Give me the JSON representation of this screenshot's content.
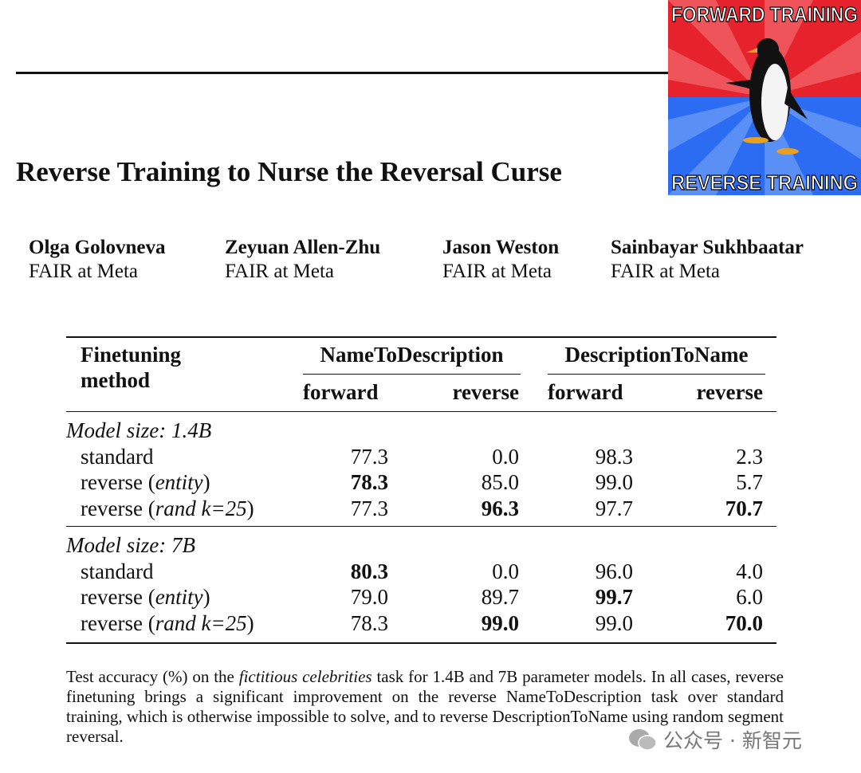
{
  "meme": {
    "top": "FORWARD TRAINING",
    "bottom": "REVERSE TRAINING"
  },
  "title": "Reverse Training to Nurse the Reversal Curse",
  "authors": [
    {
      "name": "Olga Golovneva",
      "affiliation": "FAIR at Meta"
    },
    {
      "name": "Zeyuan Allen-Zhu",
      "affiliation": "FAIR at Meta"
    },
    {
      "name": "Jason Weston",
      "affiliation": "FAIR at Meta"
    },
    {
      "name": "Sainbayar Sukhbaatar",
      "affiliation": "FAIR at Meta"
    }
  ],
  "table": {
    "header": {
      "method": [
        "Finetuning",
        "method"
      ],
      "groups": [
        "NameToDescription",
        "DescriptionToName"
      ],
      "subheaders": [
        "forward",
        "reverse",
        "forward",
        "reverse"
      ]
    },
    "sections": [
      {
        "label": "Model size: 1.4B",
        "rows": [
          {
            "method": [
              {
                "text": "standard"
              }
            ],
            "values": [
              "77.3",
              "0.0",
              "98.3",
              "2.3"
            ],
            "bold": []
          },
          {
            "method": [
              {
                "text": "reverse ("
              },
              {
                "text": "entity",
                "italic": true
              },
              {
                "text": ")"
              }
            ],
            "values": [
              "78.3",
              "85.0",
              "99.0",
              "5.7"
            ],
            "bold": [
              0
            ]
          },
          {
            "method": [
              {
                "text": "reverse ("
              },
              {
                "text": "rand k=25",
                "italic": true
              },
              {
                "text": ")"
              }
            ],
            "values": [
              "77.3",
              "96.3",
              "97.7",
              "70.7"
            ],
            "bold": [
              1,
              3
            ]
          }
        ]
      },
      {
        "label": "Model size: 7B",
        "rows": [
          {
            "method": [
              {
                "text": "standard"
              }
            ],
            "values": [
              "80.3",
              "0.0",
              "96.0",
              "4.0"
            ],
            "bold": [
              0
            ]
          },
          {
            "method": [
              {
                "text": "reverse ("
              },
              {
                "text": "entity",
                "italic": true
              },
              {
                "text": ")"
              }
            ],
            "values": [
              "79.0",
              "89.7",
              "99.7",
              "6.0"
            ],
            "bold": [
              2
            ]
          },
          {
            "method": [
              {
                "text": "reverse ("
              },
              {
                "text": "rand k=25",
                "italic": true
              },
              {
                "text": ")"
              }
            ],
            "values": [
              "78.3",
              "99.0",
              "99.0",
              "70.0"
            ],
            "bold": [
              1,
              3
            ]
          }
        ]
      }
    ]
  },
  "caption": [
    {
      "text": "Test accuracy (%) on the "
    },
    {
      "text": "fictitious celebrities",
      "italic": true
    },
    {
      "text": " task for 1.4B and 7B parameter models. In all cases, reverse finetuning brings a significant improvement on the reverse NameToDescription task over standard training, which is otherwise impossible to solve, and to reverse DescriptionToName using random segment reversal."
    }
  ],
  "watermark": "公众号 · 新智元"
}
